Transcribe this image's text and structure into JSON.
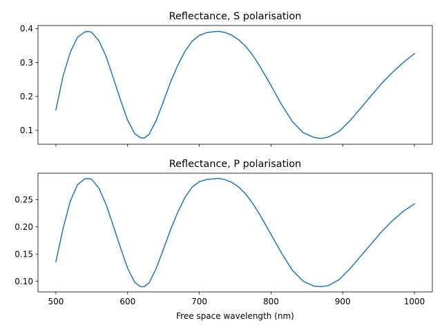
{
  "chart_data": [
    {
      "type": "line",
      "title": "Reflectance, S polarisation",
      "xlabel": "",
      "ylabel": "",
      "xlim": [
        475,
        1025
      ],
      "ylim": [
        0.059,
        0.409
      ],
      "xticks": [
        500,
        600,
        700,
        800,
        900,
        1000
      ],
      "xtick_labels": [
        "",
        "",
        "",
        "",
        "",
        ""
      ],
      "yticks": [
        0.1,
        0.2,
        0.3,
        0.4
      ],
      "ytick_labels": [
        "0.1",
        "0.2",
        "0.3",
        "0.4"
      ],
      "grid": false,
      "series": [
        {
          "color": "#1f77b4",
          "x": [
            500,
            510,
            520,
            530,
            540,
            545,
            550,
            560,
            570,
            580,
            590,
            600,
            610,
            618,
            623,
            630,
            640,
            650,
            660,
            670,
            680,
            690,
            700,
            710,
            720,
            727,
            735,
            745,
            755,
            765,
            775,
            785,
            800,
            815,
            830,
            845,
            860,
            870,
            880,
            895,
            910,
            925,
            940,
            955,
            970,
            985,
            1000
          ],
          "y": [
            0.16,
            0.26,
            0.33,
            0.374,
            0.39,
            0.392,
            0.389,
            0.364,
            0.318,
            0.255,
            0.19,
            0.13,
            0.09,
            0.078,
            0.077,
            0.088,
            0.13,
            0.185,
            0.243,
            0.292,
            0.333,
            0.363,
            0.38,
            0.388,
            0.391,
            0.392,
            0.389,
            0.381,
            0.367,
            0.347,
            0.32,
            0.287,
            0.232,
            0.175,
            0.125,
            0.093,
            0.079,
            0.076,
            0.08,
            0.097,
            0.128,
            0.165,
            0.203,
            0.24,
            0.272,
            0.301,
            0.326
          ]
        }
      ]
    },
    {
      "type": "line",
      "title": "Reflectance, P polarisation",
      "xlabel": "Free space wavelength (nm)",
      "ylabel": "",
      "xlim": [
        475,
        1025
      ],
      "ylim": [
        0.0805,
        0.2985
      ],
      "xticks": [
        500,
        600,
        700,
        800,
        900,
        1000
      ],
      "xtick_labels": [
        "500",
        "600",
        "700",
        "800",
        "900",
        "1000"
      ],
      "yticks": [
        0.1,
        0.15,
        0.2,
        0.25
      ],
      "ytick_labels": [
        "0.10",
        "0.15",
        "0.20",
        "0.25"
      ],
      "grid": false,
      "series": [
        {
          "color": "#1f77b4",
          "x": [
            500,
            510,
            520,
            530,
            540,
            545,
            550,
            560,
            570,
            580,
            590,
            600,
            610,
            618,
            623,
            630,
            640,
            650,
            660,
            670,
            680,
            690,
            700,
            710,
            720,
            727,
            735,
            745,
            755,
            765,
            775,
            785,
            800,
            815,
            830,
            845,
            860,
            870,
            880,
            895,
            910,
            925,
            940,
            955,
            970,
            985,
            1000
          ],
          "y": [
            0.136,
            0.197,
            0.247,
            0.277,
            0.288,
            0.289,
            0.287,
            0.271,
            0.241,
            0.202,
            0.162,
            0.124,
            0.098,
            0.09,
            0.09,
            0.097,
            0.124,
            0.159,
            0.195,
            0.227,
            0.254,
            0.273,
            0.283,
            0.287,
            0.288,
            0.289,
            0.287,
            0.282,
            0.273,
            0.26,
            0.242,
            0.221,
            0.186,
            0.151,
            0.12,
            0.1,
            0.091,
            0.09,
            0.092,
            0.103,
            0.123,
            0.146,
            0.169,
            0.192,
            0.212,
            0.229,
            0.242
          ]
        }
      ]
    }
  ]
}
